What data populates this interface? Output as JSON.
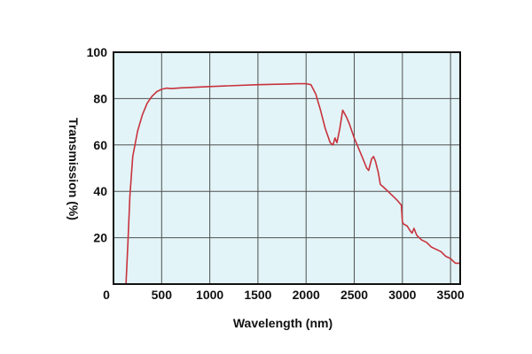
{
  "chart_data": {
    "type": "line",
    "title": "",
    "xlabel": "Wavelength (nm)",
    "ylabel": "Transmission  (%)",
    "xlim": [
      0,
      3600
    ],
    "ylim": [
      0,
      100
    ],
    "x_ticks": [
      "0",
      "500",
      "1000",
      "1500",
      "2000",
      "2500",
      "3000",
      "3500"
    ],
    "y_ticks": [
      "20",
      "40",
      "60",
      "80",
      "100"
    ],
    "grid": true,
    "colors": {
      "line": "#c8323c",
      "plot_background": "#e2f4f8",
      "grid": "#505050"
    },
    "series": [
      {
        "x": [
          130,
          150,
          170,
          200,
          250,
          300,
          350,
          400,
          450,
          500,
          550,
          600,
          700,
          1000,
          1500,
          1800,
          1900,
          2000,
          2050,
          2100,
          2150,
          2200,
          2250,
          2280,
          2300,
          2320,
          2350,
          2380,
          2420,
          2450,
          2500,
          2550,
          2600,
          2630,
          2650,
          2680,
          2700,
          2720,
          2750,
          2770,
          2800,
          2850,
          2900,
          2950,
          2990,
          3000,
          3010,
          3050,
          3080,
          3100,
          3120,
          3150,
          3200,
          3250,
          3300,
          3350,
          3400,
          3450,
          3500,
          3550,
          3600
        ],
        "y": [
          0,
          18,
          38,
          55,
          66,
          73,
          78,
          81,
          83,
          84,
          84.5,
          84.3,
          84.6,
          85.2,
          86,
          86.3,
          86.4,
          86.4,
          86,
          82,
          75,
          67,
          61,
          60,
          63,
          61,
          67,
          75,
          72,
          69,
          63,
          58,
          53,
          50,
          49,
          54,
          55,
          53,
          48,
          43,
          42,
          40,
          38,
          36,
          34,
          27,
          26,
          25,
          23,
          22,
          24,
          21,
          19,
          18,
          16,
          15,
          14,
          12,
          11,
          9,
          9
        ]
      }
    ]
  }
}
